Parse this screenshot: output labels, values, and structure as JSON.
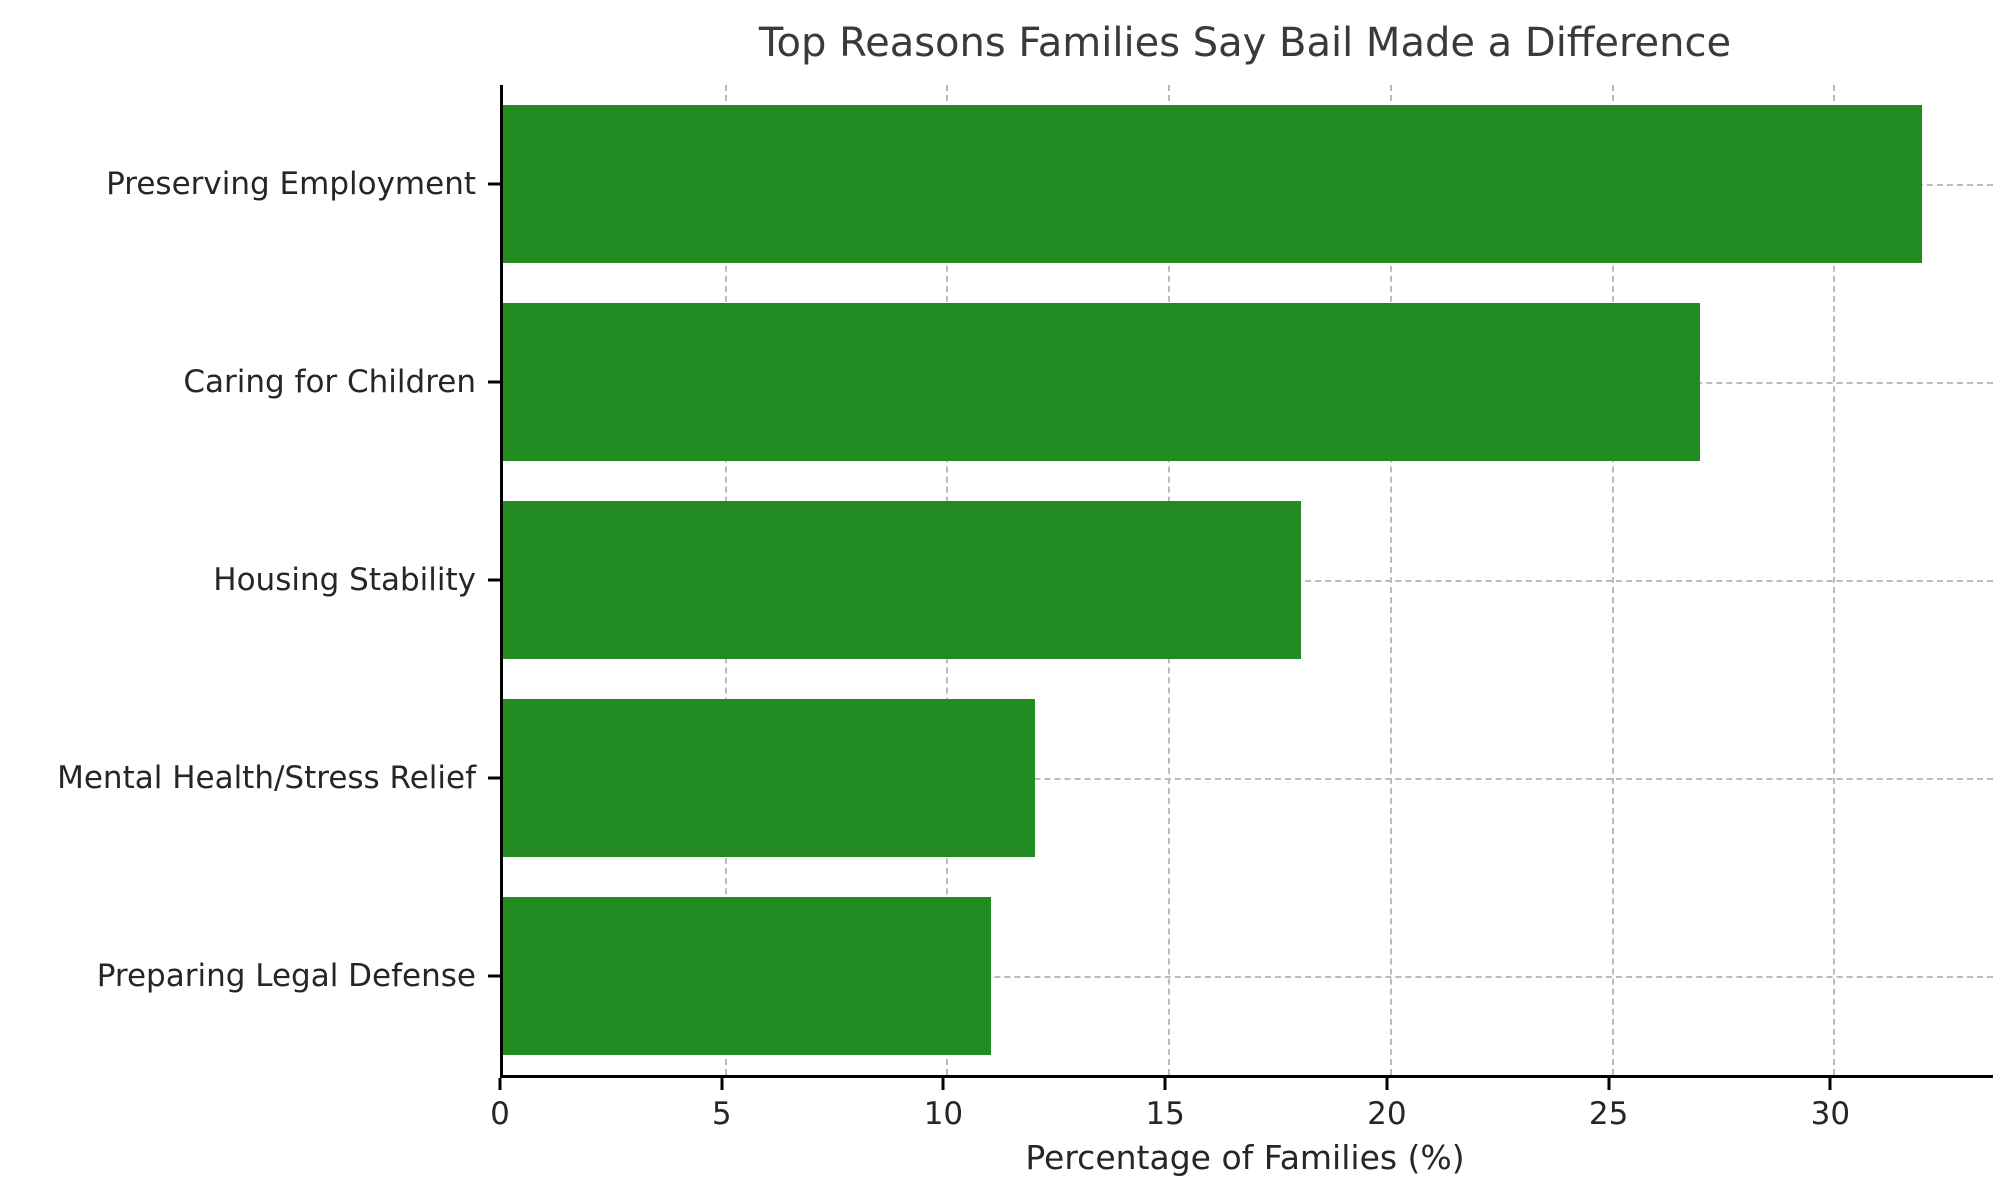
{
  "chart_data": {
    "type": "bar",
    "orientation": "horizontal",
    "title": "Top Reasons Families Say Bail Made a Difference",
    "categories": [
      "Preserving Employment",
      "Caring for Children",
      "Housing Stability",
      "Mental Health/Stress Relief",
      "Preparing Legal Defense"
    ],
    "values": [
      32,
      27,
      18,
      12,
      11
    ],
    "xlabel": "Percentage of Families (%)",
    "ylabel": "",
    "xlim": [
      0,
      33.6
    ],
    "xticks": [
      0,
      5,
      10,
      15,
      20,
      25,
      30
    ],
    "bar_color": "#228B22",
    "grid": true,
    "grid_style": "dashed",
    "grid_color": "#bbbbbb",
    "axis_color": "#000000",
    "text_color": "#262626",
    "title_color": "#3a3a3a",
    "background_color": "#ffffff",
    "legend": "none"
  }
}
